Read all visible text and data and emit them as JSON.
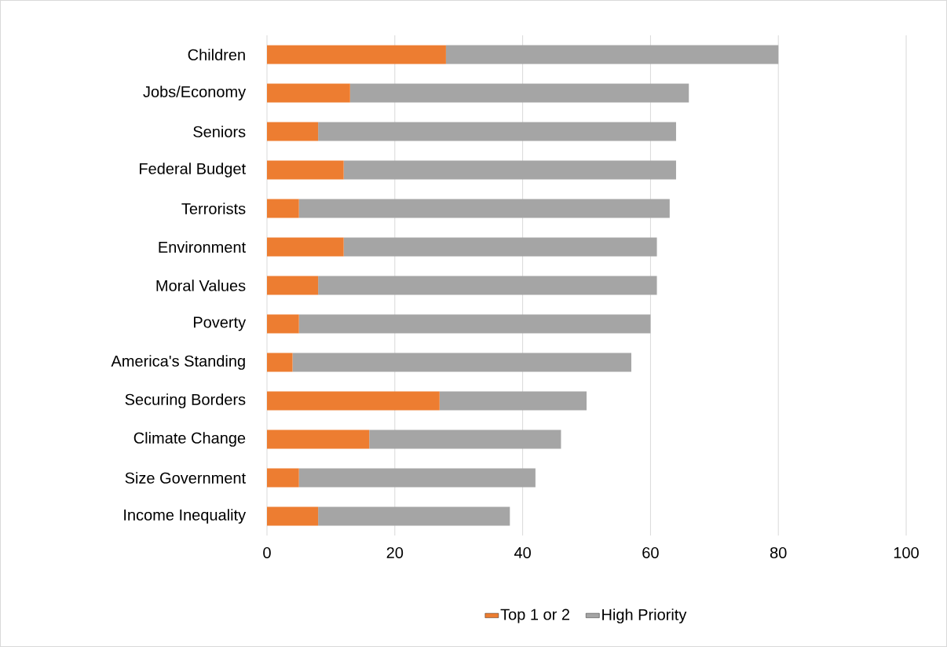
{
  "chart_data": {
    "type": "bar",
    "orientation": "horizontal",
    "stacked": true,
    "categories": [
      "Children",
      "Jobs/Economy",
      "Seniors",
      "Federal Budget",
      "Terrorists",
      "Environment",
      "Moral Values",
      "Poverty",
      "America's Standing",
      "Securing Borders",
      "Climate Change",
      "Size Government",
      "Income Inequality"
    ],
    "series": [
      {
        "name": "Top 1 or 2",
        "color": "#ed7d31",
        "values": [
          28,
          13,
          8,
          12,
          5,
          12,
          8,
          5,
          4,
          27,
          16,
          5,
          8
        ]
      },
      {
        "name": "High Priority",
        "color": "#a5a5a5",
        "values": [
          52,
          53,
          56,
          52,
          58,
          49,
          53,
          55,
          53,
          23,
          30,
          37,
          30
        ]
      }
    ],
    "xlim": [
      0,
      100
    ],
    "xticks": [
      0,
      20,
      40,
      60,
      80,
      100
    ],
    "grid": "x",
    "legend": "bottom"
  }
}
